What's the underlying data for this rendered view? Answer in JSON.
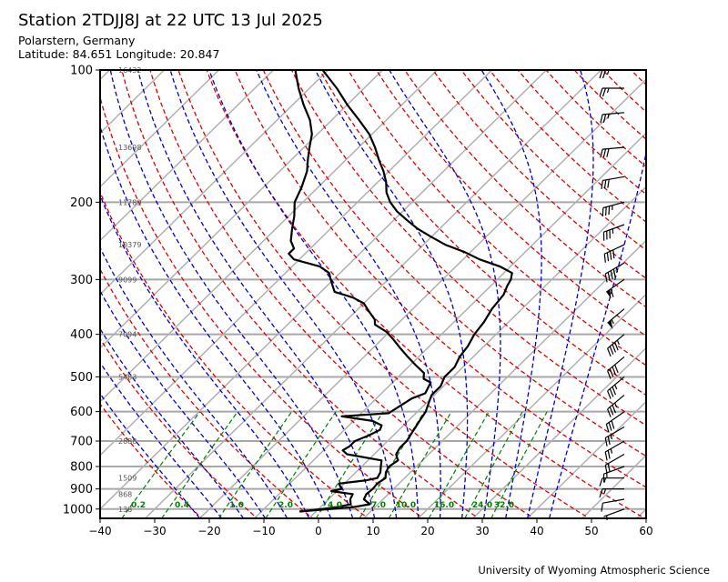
{
  "header": {
    "title": "Station 2TDJJ8J at 22 UTC 13 Jul 2025",
    "location": "Polarstern, Germany",
    "coords": "Latitude: 84.651 Longitude: 20.847"
  },
  "footer": {
    "credit": "University of Wyoming Atmospheric Science"
  },
  "colors": {
    "temperature": "#000000",
    "dewpoint": "#000000",
    "dry_adiabat": "#dd0000",
    "moist_adiabat": "#0000cc",
    "mixing_ratio": "#008000",
    "isotherm": "#b0b0b0",
    "isobar": "#a8a8a8",
    "height_label": "#555555"
  },
  "chart_data": {
    "type": "skew-t",
    "x_axis": {
      "range": [
        -40,
        60
      ],
      "ticks": [
        -40,
        -30,
        -20,
        -10,
        0,
        10,
        20,
        30,
        40,
        50,
        60
      ]
    },
    "y_axis": {
      "scale": "log",
      "range": [
        1050,
        100
      ],
      "ticks": [
        100,
        200,
        300,
        400,
        500,
        600,
        700,
        800,
        900,
        1000
      ]
    },
    "height_labels": [
      {
        "p": 100,
        "text": "16432"
      },
      {
        "p": 150,
        "text": "13698"
      },
      {
        "p": 200,
        "text": "11789"
      },
      {
        "p": 250,
        "text": "10379"
      },
      {
        "p": 300,
        "text": "9099"
      },
      {
        "p": 400,
        "text": "7094"
      },
      {
        "p": 500,
        "text": "5483"
      },
      {
        "p": 700,
        "text": "2888"
      },
      {
        "p": 850,
        "text": "1509"
      },
      {
        "p": 925,
        "text": "868"
      },
      {
        "p": 1000,
        "text": "138"
      }
    ],
    "mixing_ratio_labels": [
      "0.2",
      "0.4",
      "1.0",
      "2.0",
      "4.0",
      "7.0",
      "10.0",
      "16.0",
      "24.0",
      "32.0"
    ],
    "mixing_ratio_label_temps": [
      -33,
      -25,
      -15,
      -6,
      3,
      11,
      16,
      23,
      30,
      34
    ],
    "temperature_profile": [
      [
        1013,
        -3.0
      ],
      [
        1000,
        2.0
      ],
      [
        990,
        6.0
      ],
      [
        975,
        8.5
      ],
      [
        950,
        6.5
      ],
      [
        925,
        6.0
      ],
      [
        900,
        6.2
      ],
      [
        875,
        6.0
      ],
      [
        850,
        6.5
      ],
      [
        825,
        5.5
      ],
      [
        800,
        5.0
      ],
      [
        775,
        5.5
      ],
      [
        750,
        4.0
      ],
      [
        725,
        3.5
      ],
      [
        700,
        3.5
      ],
      [
        675,
        3.0
      ],
      [
        650,
        2.5
      ],
      [
        625,
        2.0
      ],
      [
        600,
        1.5
      ],
      [
        575,
        0.5
      ],
      [
        550,
        -0.5
      ],
      [
        525,
        -0.5
      ],
      [
        500,
        -1.5
      ],
      [
        475,
        -1.5
      ],
      [
        450,
        -2.5
      ],
      [
        425,
        -3.0
      ],
      [
        400,
        -4.0
      ],
      [
        375,
        -4.5
      ],
      [
        350,
        -5.5
      ],
      [
        325,
        -6.0
      ],
      [
        310,
        -7.0
      ],
      [
        300,
        -7.5
      ],
      [
        290,
        -8.5
      ],
      [
        280,
        -12.0
      ],
      [
        270,
        -17.0
      ],
      [
        260,
        -21.0
      ],
      [
        250,
        -26.0
      ],
      [
        240,
        -30.0
      ],
      [
        230,
        -34.0
      ],
      [
        220,
        -37.5
      ],
      [
        210,
        -41.0
      ],
      [
        200,
        -44.0
      ],
      [
        190,
        -46.5
      ],
      [
        180,
        -48.5
      ],
      [
        170,
        -51.0
      ],
      [
        160,
        -54.0
      ],
      [
        150,
        -57.0
      ],
      [
        140,
        -60.5
      ],
      [
        130,
        -65.0
      ],
      [
        120,
        -70.0
      ],
      [
        110,
        -75.0
      ],
      [
        100,
        -81.0
      ]
    ],
    "dewpoint_profile": [
      [
        1013,
        -3.0
      ],
      [
        1000,
        0.5
      ],
      [
        990,
        3.0
      ],
      [
        975,
        5.0
      ],
      [
        950,
        4.0
      ],
      [
        925,
        3.5
      ],
      [
        910,
        -1.0
      ],
      [
        900,
        0.5
      ],
      [
        875,
        -1.0
      ],
      [
        860,
        3.5
      ],
      [
        850,
        5.0
      ],
      [
        825,
        4.5
      ],
      [
        800,
        3.5
      ],
      [
        775,
        2.5
      ],
      [
        750,
        -5.0
      ],
      [
        735,
        -6.5
      ],
      [
        720,
        -6.0
      ],
      [
        700,
        -6.0
      ],
      [
        680,
        -4.5
      ],
      [
        660,
        -3.5
      ],
      [
        645,
        -4.0
      ],
      [
        630,
        -6.5
      ],
      [
        615,
        -13.0
      ],
      [
        605,
        -5.0
      ],
      [
        590,
        -4.5
      ],
      [
        575,
        -4.0
      ],
      [
        560,
        -3.5
      ],
      [
        545,
        -2.0
      ],
      [
        530,
        -2.5
      ],
      [
        515,
        -3.0
      ],
      [
        505,
        -5.0
      ],
      [
        490,
        -6.0
      ],
      [
        470,
        -9.0
      ],
      [
        450,
        -12.0
      ],
      [
        430,
        -15.0
      ],
      [
        410,
        -18.0
      ],
      [
        395,
        -20.5
      ],
      [
        380,
        -24.0
      ],
      [
        370,
        -25.0
      ],
      [
        355,
        -27.5
      ],
      [
        340,
        -30.0
      ],
      [
        330,
        -33.0
      ],
      [
        320,
        -37.5
      ],
      [
        310,
        -39.0
      ],
      [
        300,
        -40.5
      ],
      [
        290,
        -42.0
      ],
      [
        280,
        -45.0
      ],
      [
        270,
        -51.0
      ],
      [
        262,
        -53.0
      ],
      [
        255,
        -53.0
      ],
      [
        245,
        -55.0
      ],
      [
        230,
        -57.0
      ],
      [
        215,
        -59.0
      ],
      [
        200,
        -61.5
      ],
      [
        185,
        -63.0
      ],
      [
        170,
        -65.0
      ],
      [
        160,
        -67.0
      ],
      [
        150,
        -69.0
      ],
      [
        140,
        -71.0
      ],
      [
        130,
        -74.0
      ],
      [
        120,
        -78.0
      ],
      [
        110,
        -82.0
      ],
      [
        100,
        -86.0
      ]
    ],
    "wind_barbs": [
      {
        "p": 1000,
        "dir": 250,
        "spd": 5
      },
      {
        "p": 950,
        "dir": 260,
        "spd": 10
      },
      {
        "p": 900,
        "dir": 270,
        "spd": 15
      },
      {
        "p": 850,
        "dir": 270,
        "spd": 15
      },
      {
        "p": 800,
        "dir": 250,
        "spd": 15
      },
      {
        "p": 750,
        "dir": 240,
        "spd": 20
      },
      {
        "p": 700,
        "dir": 240,
        "spd": 25
      },
      {
        "p": 650,
        "dir": 240,
        "spd": 25
      },
      {
        "p": 600,
        "dir": 235,
        "spd": 30
      },
      {
        "p": 550,
        "dir": 230,
        "spd": 35
      },
      {
        "p": 500,
        "dir": 230,
        "spd": 35
      },
      {
        "p": 450,
        "dir": 230,
        "spd": 40
      },
      {
        "p": 400,
        "dir": 230,
        "spd": 45
      },
      {
        "p": 350,
        "dir": 230,
        "spd": 55
      },
      {
        "p": 300,
        "dir": 235,
        "spd": 60
      },
      {
        "p": 275,
        "dir": 240,
        "spd": 45
      },
      {
        "p": 250,
        "dir": 245,
        "spd": 40
      },
      {
        "p": 225,
        "dir": 250,
        "spd": 35
      },
      {
        "p": 200,
        "dir": 255,
        "spd": 35
      },
      {
        "p": 175,
        "dir": 260,
        "spd": 30
      },
      {
        "p": 150,
        "dir": 265,
        "spd": 30
      },
      {
        "p": 125,
        "dir": 265,
        "spd": 25
      },
      {
        "p": 110,
        "dir": 270,
        "spd": 25
      },
      {
        "p": 100,
        "dir": 270,
        "spd": 25
      }
    ]
  }
}
